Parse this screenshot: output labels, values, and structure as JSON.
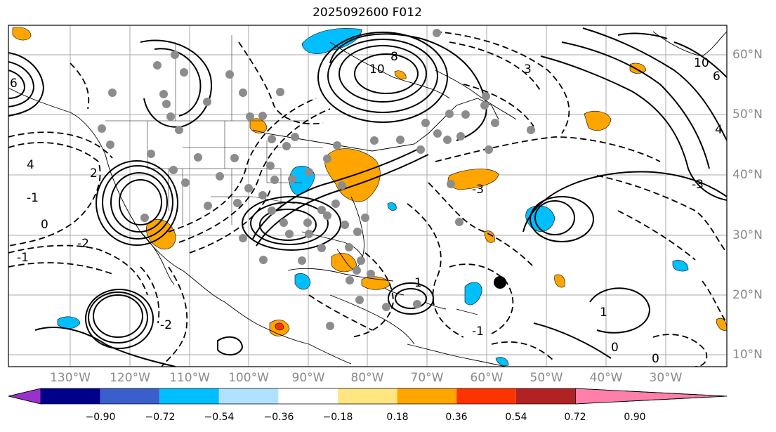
{
  "title": "2025092600 F012",
  "lon_labels": [
    "130°W",
    "120°W",
    "110°W",
    "100°W",
    "90°W",
    "80°W",
    "70°W",
    "60°W",
    "50°W",
    "40°W",
    "30°W"
  ],
  "lat_labels": [
    "60°N",
    "50°N",
    "40°N",
    "30°N",
    "20°N",
    "10°N"
  ],
  "colorbar": {
    "ticks": [
      "−0.90",
      "−0.72",
      "−0.54",
      "−0.36",
      "−0.18",
      "0.18",
      "0.36",
      "0.54",
      "0.72",
      "0.90"
    ],
    "colors": [
      "#9932cc",
      "#00008b",
      "#3a5fcd",
      "#00bfff",
      "#b0e2ff",
      "#ffffff",
      "#ffe680",
      "#ffa500",
      "#ff3300",
      "#b22222",
      "#ff7faa"
    ]
  },
  "contour_labels": [
    "8",
    "10",
    "6",
    "4",
    "2",
    "0",
    "-1",
    "3",
    "10",
    "6",
    "-3",
    "4",
    "-2",
    "-1",
    "1",
    "0",
    "1",
    "-1",
    "0",
    "-2",
    "-3"
  ]
}
